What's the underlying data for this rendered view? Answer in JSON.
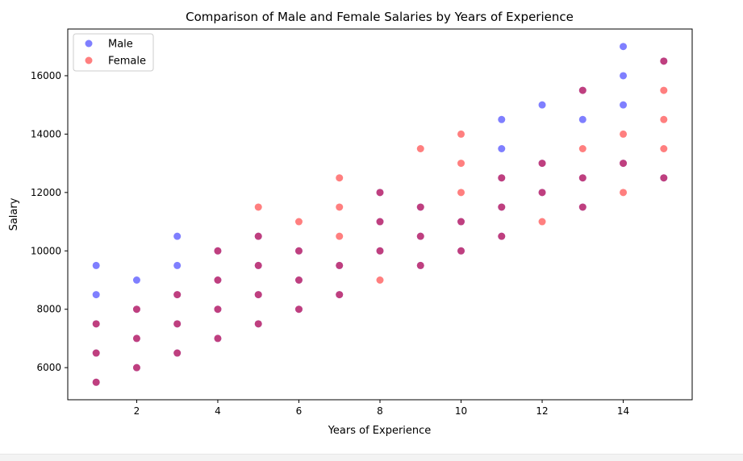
{
  "chart_data": {
    "type": "scatter",
    "title": "Comparison of Male and Female Salaries by Years of Experience",
    "xlabel": "Years of Experience",
    "ylabel": "Salary",
    "xlim": [
      0.3,
      15.7
    ],
    "ylim": [
      4900,
      17600
    ],
    "xticks": [
      2,
      4,
      6,
      8,
      10,
      12,
      14
    ],
    "yticks": [
      6000,
      8000,
      10000,
      12000,
      14000,
      16000
    ],
    "grid": false,
    "legend_position": "top-left",
    "series": [
      {
        "name": "Male",
        "color": "#0000ff",
        "alpha": 0.5,
        "points": [
          [
            1,
            5500
          ],
          [
            1,
            6500
          ],
          [
            1,
            7500
          ],
          [
            1,
            8500
          ],
          [
            1,
            9500
          ],
          [
            2,
            6000
          ],
          [
            2,
            7000
          ],
          [
            2,
            8000
          ],
          [
            2,
            9000
          ],
          [
            3,
            6500
          ],
          [
            3,
            7500
          ],
          [
            3,
            8500
          ],
          [
            3,
            9500
          ],
          [
            3,
            10500
          ],
          [
            4,
            7000
          ],
          [
            4,
            8000
          ],
          [
            4,
            9000
          ],
          [
            4,
            10000
          ],
          [
            5,
            7500
          ],
          [
            5,
            8500
          ],
          [
            5,
            9500
          ],
          [
            5,
            10500
          ],
          [
            6,
            8000
          ],
          [
            6,
            9000
          ],
          [
            6,
            10000
          ],
          [
            7,
            8500
          ],
          [
            7,
            9500
          ],
          [
            8,
            10000
          ],
          [
            8,
            11000
          ],
          [
            8,
            12000
          ],
          [
            9,
            9500
          ],
          [
            9,
            10500
          ],
          [
            9,
            11500
          ],
          [
            10,
            10000
          ],
          [
            10,
            11000
          ],
          [
            11,
            10500
          ],
          [
            11,
            11500
          ],
          [
            11,
            12500
          ],
          [
            11,
            13500
          ],
          [
            11,
            14500
          ],
          [
            12,
            12000
          ],
          [
            12,
            13000
          ],
          [
            12,
            15000
          ],
          [
            13,
            11500
          ],
          [
            13,
            12500
          ],
          [
            13,
            14500
          ],
          [
            13,
            15500
          ],
          [
            14,
            13000
          ],
          [
            14,
            15000
          ],
          [
            14,
            16000
          ],
          [
            14,
            17000
          ],
          [
            15,
            12500
          ],
          [
            15,
            16500
          ]
        ]
      },
      {
        "name": "Female",
        "color": "#ff0000",
        "alpha": 0.5,
        "points": [
          [
            1,
            5500
          ],
          [
            1,
            6500
          ],
          [
            1,
            7500
          ],
          [
            2,
            6000
          ],
          [
            2,
            7000
          ],
          [
            2,
            8000
          ],
          [
            3,
            6500
          ],
          [
            3,
            7500
          ],
          [
            3,
            8500
          ],
          [
            4,
            7000
          ],
          [
            4,
            8000
          ],
          [
            4,
            9000
          ],
          [
            4,
            10000
          ],
          [
            5,
            7500
          ],
          [
            5,
            8500
          ],
          [
            5,
            9500
          ],
          [
            5,
            10500
          ],
          [
            5,
            11500
          ],
          [
            6,
            8000
          ],
          [
            6,
            9000
          ],
          [
            6,
            10000
          ],
          [
            6,
            11000
          ],
          [
            7,
            8500
          ],
          [
            7,
            9500
          ],
          [
            7,
            10500
          ],
          [
            7,
            11500
          ],
          [
            7,
            12500
          ],
          [
            8,
            9000
          ],
          [
            8,
            10000
          ],
          [
            8,
            11000
          ],
          [
            8,
            12000
          ],
          [
            9,
            9500
          ],
          [
            9,
            10500
          ],
          [
            9,
            11500
          ],
          [
            9,
            13500
          ],
          [
            10,
            10000
          ],
          [
            10,
            11000
          ],
          [
            10,
            12000
          ],
          [
            10,
            13000
          ],
          [
            10,
            14000
          ],
          [
            11,
            10500
          ],
          [
            11,
            11500
          ],
          [
            11,
            12500
          ],
          [
            12,
            11000
          ],
          [
            12,
            12000
          ],
          [
            12,
            13000
          ],
          [
            13,
            11500
          ],
          [
            13,
            12500
          ],
          [
            13,
            13500
          ],
          [
            13,
            15500
          ],
          [
            14,
            12000
          ],
          [
            14,
            13000
          ],
          [
            14,
            14000
          ],
          [
            15,
            12500
          ],
          [
            15,
            13500
          ],
          [
            15,
            14500
          ],
          [
            15,
            15500
          ],
          [
            15,
            16500
          ]
        ]
      }
    ]
  }
}
